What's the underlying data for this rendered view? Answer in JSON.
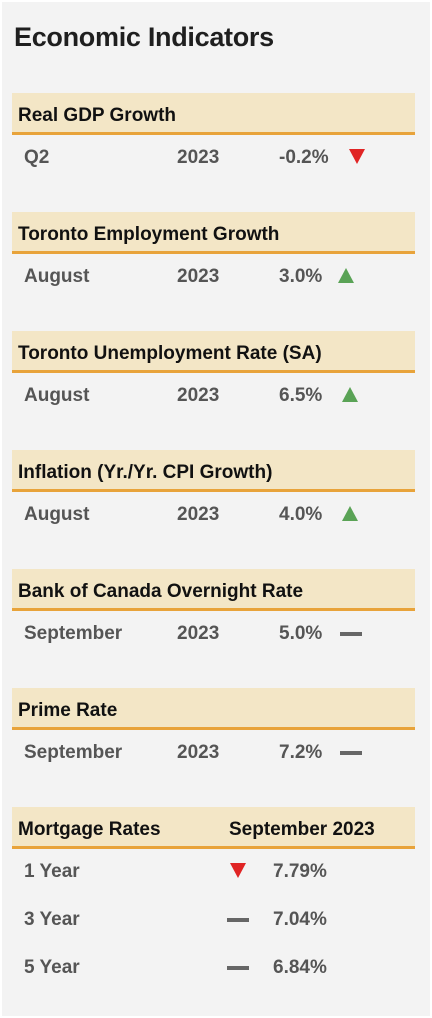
{
  "title": "Economic Indicators",
  "colors": {
    "header_bg": "#f3e6c6",
    "header_border": "#e8a33a",
    "up": "#5aa356",
    "down": "#e02424",
    "flat": "#666666"
  },
  "indicators": [
    {
      "title": "Real GDP Growth",
      "period": "Q2",
      "year": "2023",
      "value": "-0.2%",
      "trend": "down-triangle-icon"
    },
    {
      "title": "Toronto Employment Growth",
      "period": "August",
      "year": "2023",
      "value": "3.0%",
      "trend": "up-triangle-icon"
    },
    {
      "title": "Toronto Unemployment Rate (SA)",
      "period": "August",
      "year": "2023",
      "value": "6.5%",
      "trend": "up-triangle-icon"
    },
    {
      "title": "Inflation (Yr./Yr. CPI Growth)",
      "period": "August",
      "year": "2023",
      "value": "4.0%",
      "trend": "up-triangle-icon"
    },
    {
      "title": "Bank of Canada Overnight Rate",
      "period": "September",
      "year": "2023",
      "value": "5.0%",
      "trend": "flat-dash-icon"
    },
    {
      "title": "Prime Rate",
      "period": "September",
      "year": "2023",
      "value": "7.2%",
      "trend": "flat-dash-icon"
    }
  ],
  "mortgage": {
    "title": "Mortgage Rates",
    "period": "September 2023",
    "rows": [
      {
        "term": "1 Year",
        "value": "7.79%",
        "trend": "down-triangle-icon"
      },
      {
        "term": "3 Year",
        "value": "7.04%",
        "trend": "flat-dash-icon"
      },
      {
        "term": "5 Year",
        "value": "6.84%",
        "trend": "flat-dash-icon"
      }
    ]
  }
}
